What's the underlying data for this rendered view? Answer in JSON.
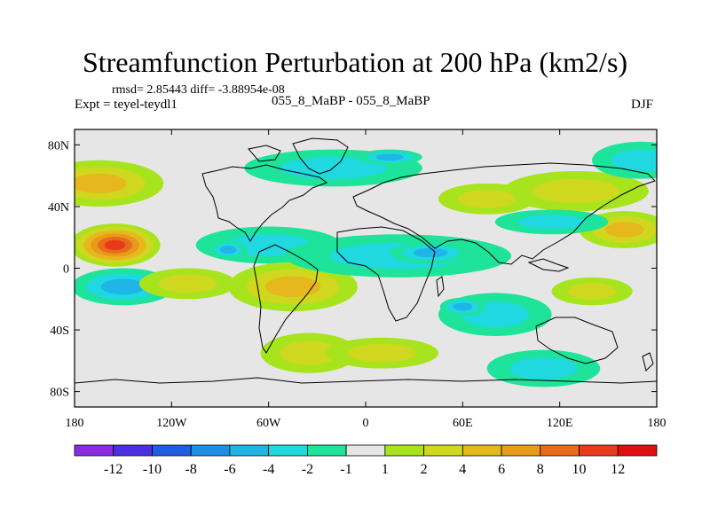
{
  "figure": {
    "title": "Streamfunction Perturbation at 200 hPa (km2/s)",
    "stats": "rmsd= 2.85443 diff= -3.88954e-08",
    "experiment": "Expt = teyel-teydl1",
    "cases": "055_8_MaBP - 055_8_MaBP",
    "season": "DJF"
  },
  "chart_data": {
    "type": "heatmap",
    "projection": "cylindrical-equidistant",
    "title": "Streamfunction Perturbation at 200 hPa (km2/s)",
    "xlabel": "",
    "ylabel": "",
    "xlim": [
      -180,
      180
    ],
    "ylim": [
      -90,
      90
    ],
    "x_ticks": [
      {
        "value": -180,
        "label": "180"
      },
      {
        "value": -120,
        "label": "120W"
      },
      {
        "value": -60,
        "label": "60W"
      },
      {
        "value": 0,
        "label": "0"
      },
      {
        "value": 60,
        "label": "60E"
      },
      {
        "value": 120,
        "label": "120E"
      },
      {
        "value": 180,
        "label": "180"
      }
    ],
    "y_ticks": [
      {
        "value": 80,
        "label": "80N"
      },
      {
        "value": 40,
        "label": "40N"
      },
      {
        "value": 0,
        "label": "0"
      },
      {
        "value": -40,
        "label": "40S"
      },
      {
        "value": -80,
        "label": "80S"
      }
    ],
    "levels": [
      "-12",
      "-10",
      "-8",
      "-6",
      "-4",
      "-2",
      "-1",
      "1",
      "2",
      "4",
      "6",
      "8",
      "10",
      "12"
    ],
    "colors": [
      "#8b2be0",
      "#4b2fe0",
      "#1f5ee0",
      "#1e8fe6",
      "#1fb5e6",
      "#1fd8e0",
      "#1ee39a",
      "#e6e6e6",
      "#a8e41e",
      "#cfd81e",
      "#e6b81e",
      "#e89a1a",
      "#e86a1a",
      "#e83a1a",
      "#e01010"
    ],
    "features": [
      {
        "lon": -155,
        "lat": 15,
        "value": 11.5,
        "rx": 28,
        "ry": 14
      },
      {
        "lon": -165,
        "lat": 55,
        "value": 5.5,
        "rx": 40,
        "ry": 15
      },
      {
        "lon": -150,
        "lat": -12,
        "value": -5.5,
        "rx": 32,
        "ry": 12
      },
      {
        "lon": -110,
        "lat": -10,
        "value": 2.5,
        "rx": 30,
        "ry": 10
      },
      {
        "lon": -60,
        "lat": 15,
        "value": -3.5,
        "rx": 45,
        "ry": 12
      },
      {
        "lon": -85,
        "lat": 12,
        "value": -5.5,
        "rx": 12,
        "ry": 6
      },
      {
        "lon": -45,
        "lat": -12,
        "value": 4.5,
        "rx": 40,
        "ry": 16
      },
      {
        "lon": -35,
        "lat": -55,
        "value": 2.5,
        "rx": 30,
        "ry": 13
      },
      {
        "lon": -20,
        "lat": 65,
        "value": -3,
        "rx": 55,
        "ry": 12
      },
      {
        "lon": 20,
        "lat": 8,
        "value": -3,
        "rx": 70,
        "ry": 14
      },
      {
        "lon": 40,
        "lat": 10,
        "value": -5,
        "rx": 25,
        "ry": 7
      },
      {
        "lon": 15,
        "lat": 72,
        "value": -4,
        "rx": 20,
        "ry": 5
      },
      {
        "lon": 80,
        "lat": -30,
        "value": -3.5,
        "rx": 35,
        "ry": 14
      },
      {
        "lon": 60,
        "lat": -25,
        "value": -5.5,
        "rx": 14,
        "ry": 6
      },
      {
        "lon": 110,
        "lat": -65,
        "value": -2,
        "rx": 35,
        "ry": 12
      },
      {
        "lon": 140,
        "lat": -15,
        "value": 2.5,
        "rx": 25,
        "ry": 9
      },
      {
        "lon": 160,
        "lat": 25,
        "value": 4,
        "rx": 28,
        "ry": 12
      },
      {
        "lon": 130,
        "lat": 50,
        "value": 2.5,
        "rx": 45,
        "ry": 13
      },
      {
        "lon": 75,
        "lat": 45,
        "value": 3,
        "rx": 30,
        "ry": 10
      },
      {
        "lon": 170,
        "lat": 70,
        "value": -2.5,
        "rx": 30,
        "ry": 12
      },
      {
        "lon": 115,
        "lat": 30,
        "value": -2.5,
        "rx": 35,
        "ry": 8
      },
      {
        "lon": 10,
        "lat": -55,
        "value": 2.5,
        "rx": 35,
        "ry": 10
      }
    ]
  }
}
